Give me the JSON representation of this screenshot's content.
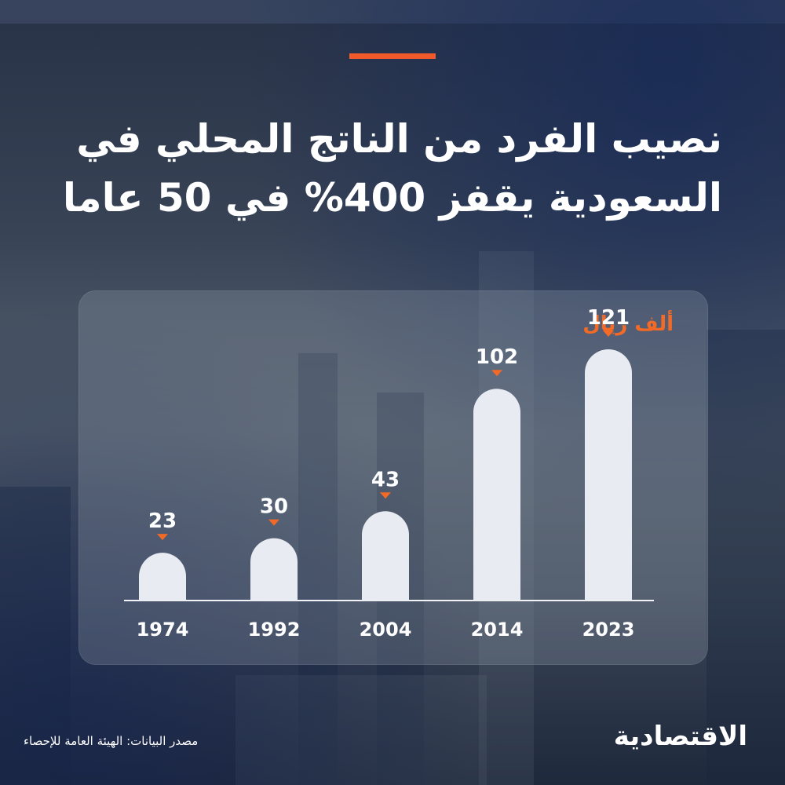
{
  "header": {
    "title_line1": "نصيب الفرد من الناتج المحلي في",
    "title_line2": "السعودية يقفز 400% في 50 عاما"
  },
  "chart_data": {
    "type": "bar",
    "unit_label": "ألف ريال",
    "categories": [
      "1974",
      "1992",
      "2004",
      "2014",
      "2023"
    ],
    "values": [
      23,
      30,
      43,
      102,
      121
    ],
    "bar_color": "#e9ebf2",
    "marker_color": "#f26a25"
  },
  "footer": {
    "source": "مصدر البيانات: الهيئة العامة للإحصاء",
    "logo": "الاقتصادية"
  },
  "colors": {
    "accent": "#f0592a",
    "title": "#ffffff"
  }
}
